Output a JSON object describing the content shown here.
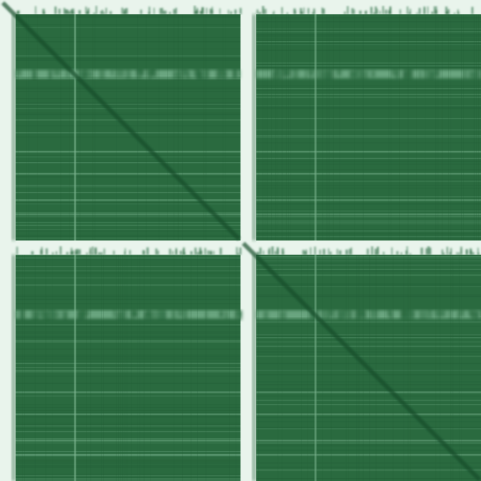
{
  "heatmap": {
    "type": "heatmap",
    "panel_grid": {
      "rows": 2,
      "cols": 2
    },
    "panels": [
      {
        "row": 0,
        "col": 0,
        "has_diagonal": true
      },
      {
        "row": 0,
        "col": 1,
        "has_diagonal": false
      },
      {
        "row": 1,
        "col": 0,
        "has_diagonal": false
      },
      {
        "row": 1,
        "col": 1,
        "has_diagonal": true
      }
    ],
    "colors": {
      "background": "#e9f4ec",
      "cell_dark": "#1f5a33",
      "cell_base": "#2a6a3f",
      "cell_light": "#7fb894",
      "diagonal": "#194d2b"
    },
    "labels_visible": false
  }
}
